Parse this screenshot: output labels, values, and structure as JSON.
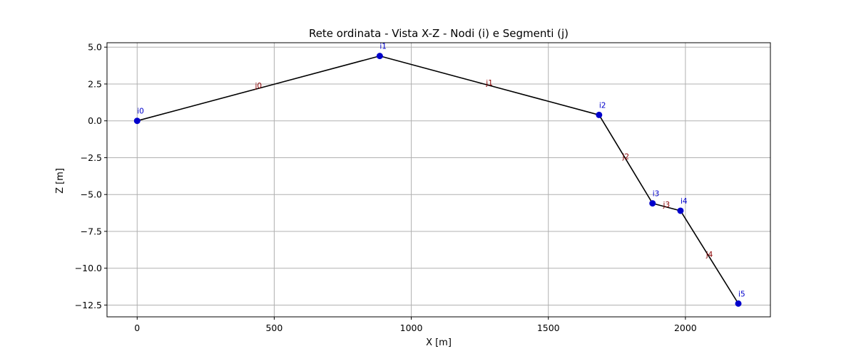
{
  "chart_data": {
    "type": "line",
    "title": "Rete ordinata - Vista X-Z - Nodi (i) e Segmenti (j)",
    "xlabel": "X [m]",
    "ylabel": "Z [m]",
    "xlim": [
      -110,
      2310
    ],
    "ylim": [
      -13.3,
      5.3
    ],
    "xticks": [
      0,
      500,
      1000,
      1500,
      2000
    ],
    "xtick_labels": [
      "0",
      "500",
      "1000",
      "1500",
      "2000"
    ],
    "yticks": [
      5.0,
      2.5,
      0.0,
      -2.5,
      -5.0,
      -7.5,
      -10.0,
      -12.5
    ],
    "ytick_labels": [
      "5.0",
      "2.5",
      "0.0",
      "−2.5",
      "−5.0",
      "−7.5",
      "−10.0",
      "−12.5"
    ],
    "grid": true,
    "nodes": [
      {
        "label": "i0",
        "x": 0,
        "z": 0.0
      },
      {
        "label": "i1",
        "x": 885,
        "z": 4.4
      },
      {
        "label": "i2",
        "x": 1685,
        "z": 0.4
      },
      {
        "label": "i3",
        "x": 1880,
        "z": -5.6
      },
      {
        "label": "i4",
        "x": 1982,
        "z": -6.1
      },
      {
        "label": "i5",
        "x": 2193,
        "z": -12.4
      }
    ],
    "segments": [
      {
        "label": "j0",
        "from": 0,
        "to": 1
      },
      {
        "label": "j1",
        "from": 1,
        "to": 2
      },
      {
        "label": "j2",
        "from": 2,
        "to": 3
      },
      {
        "label": "j3",
        "from": 3,
        "to": 4
      },
      {
        "label": "j4",
        "from": 4,
        "to": 5
      }
    ],
    "colors": {
      "line": "#000000",
      "node_marker": "#0000cc",
      "node_label": "#0000cc",
      "segment_label": "#8b0000",
      "grid": "#b0b0b0"
    }
  }
}
